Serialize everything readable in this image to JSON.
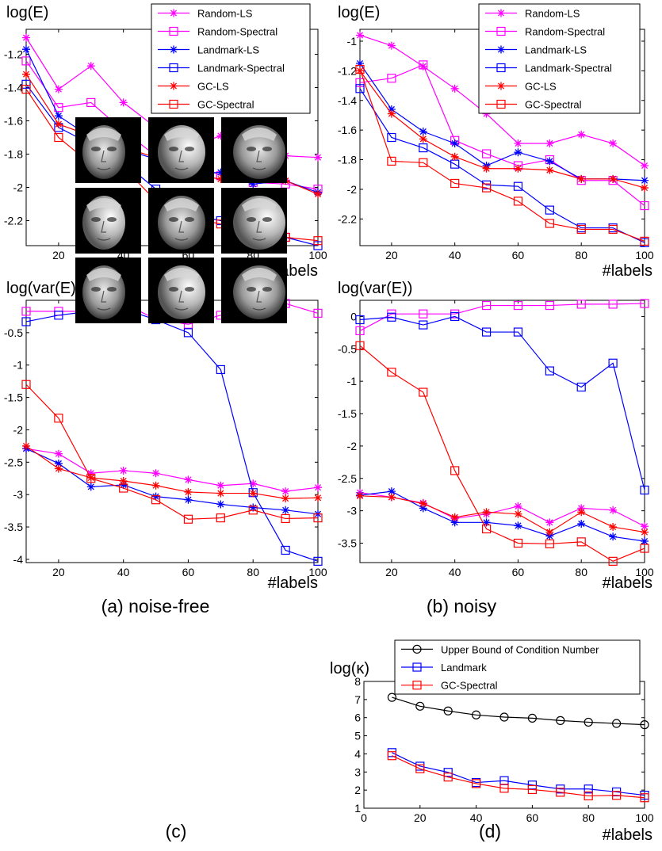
{
  "captions": {
    "a": "(a) noise-free",
    "b": "(b) noisy",
    "c": "(c)",
    "d": "(d)"
  },
  "faces_panel": {
    "face_count": 9
  },
  "colors": {
    "magenta": "#ff00ff",
    "blue": "#0000ff",
    "red": "#ff0000",
    "black": "#000000"
  },
  "chart_data": [
    {
      "id": "top-left",
      "type": "line",
      "ylabel": "log(E)",
      "xlabel": "#labels",
      "xlim": [
        10,
        100
      ],
      "ylim": [
        -2.35,
        -1.05
      ],
      "xticks": [
        20,
        40,
        60,
        80,
        100
      ],
      "xtick_labels": [
        "20",
        "40",
        "60",
        "80",
        "100"
      ],
      "yticks": [
        -2.2,
        -2,
        -1.8,
        -1.6,
        -1.4,
        -1.2
      ],
      "ytick_labels": [
        "-2.2",
        "-2",
        "-1.8",
        "-1.6",
        "-1.4",
        "-1.2"
      ],
      "legend": "top-right",
      "x": [
        10,
        20,
        30,
        40,
        50,
        60,
        70,
        80,
        90,
        100
      ],
      "series": [
        {
          "name": "Random-LS",
          "color": "#ff00ff",
          "marker": "star",
          "values": [
            -1.1,
            -1.41,
            -1.27,
            -1.49,
            -1.64,
            -1.76,
            -1.69,
            -1.79,
            -1.81,
            -1.82
          ]
        },
        {
          "name": "Random-Spectral",
          "color": "#ff00ff",
          "marker": "square",
          "values": [
            -1.24,
            -1.52,
            -1.49,
            -1.66,
            -1.81,
            -1.83,
            -1.93,
            -1.97,
            -1.98,
            -2.01
          ]
        },
        {
          "name": "Landmark-LS",
          "color": "#0000ff",
          "marker": "star",
          "values": [
            -1.17,
            -1.57,
            -1.7,
            -1.77,
            -1.83,
            -1.92,
            -1.91,
            -1.98,
            -1.96,
            -2.03
          ]
        },
        {
          "name": "Landmark-Spectral",
          "color": "#0000ff",
          "marker": "square",
          "values": [
            -1.38,
            -1.64,
            -1.74,
            -1.85,
            -2.01,
            -2.16,
            -2.2,
            -2.25,
            -2.3,
            -2.35
          ]
        },
        {
          "name": "GC-LS",
          "color": "#ff0000",
          "marker": "star",
          "values": [
            -1.32,
            -1.62,
            -1.69,
            -1.76,
            -1.82,
            -1.92,
            -1.95,
            -1.95,
            -1.96,
            -2.04
          ]
        },
        {
          "name": "GC-Spectral",
          "color": "#ff0000",
          "marker": "square",
          "values": [
            -1.41,
            -1.7,
            -1.86,
            -1.88,
            -2.08,
            -2.18,
            -2.22,
            -2.29,
            -2.3,
            -2.32
          ]
        }
      ]
    },
    {
      "id": "top-right",
      "type": "line",
      "ylabel": "log(E)",
      "xlabel": "#labels",
      "xlim": [
        10,
        100
      ],
      "ylim": [
        -2.38,
        -0.92
      ],
      "xticks": [
        20,
        40,
        60,
        80,
        100
      ],
      "xtick_labels": [
        "20",
        "40",
        "60",
        "80",
        "100"
      ],
      "yticks": [
        -2.2,
        -2,
        -1.8,
        -1.6,
        -1.4,
        -1.2,
        -1
      ],
      "ytick_labels": [
        "-2.2",
        "-2",
        "-1.8",
        "-1.6",
        "-1.4",
        "-1.2",
        "-1"
      ],
      "legend": "top-right",
      "x": [
        10,
        20,
        30,
        40,
        50,
        60,
        70,
        80,
        90,
        100
      ],
      "series": [
        {
          "name": "Random-LS",
          "color": "#ff00ff",
          "marker": "star",
          "values": [
            -0.96,
            -1.03,
            -1.17,
            -1.32,
            -1.49,
            -1.69,
            -1.69,
            -1.63,
            -1.69,
            -1.84
          ]
        },
        {
          "name": "Random-Spectral",
          "color": "#ff00ff",
          "marker": "square",
          "values": [
            -1.28,
            -1.25,
            -1.16,
            -1.67,
            -1.76,
            -1.84,
            -1.8,
            -1.94,
            -1.94,
            -2.11
          ]
        },
        {
          "name": "Landmark-LS",
          "color": "#0000ff",
          "marker": "star",
          "values": [
            -1.15,
            -1.46,
            -1.61,
            -1.69,
            -1.84,
            -1.75,
            -1.81,
            -1.93,
            -1.93,
            -1.94
          ]
        },
        {
          "name": "Landmark-Spectral",
          "color": "#0000ff",
          "marker": "square",
          "values": [
            -1.32,
            -1.65,
            -1.72,
            -1.83,
            -1.97,
            -1.98,
            -2.14,
            -2.26,
            -2.26,
            -2.36
          ]
        },
        {
          "name": "GC-LS",
          "color": "#ff0000",
          "marker": "star",
          "values": [
            -1.2,
            -1.49,
            -1.66,
            -1.78,
            -1.86,
            -1.86,
            -1.87,
            -1.93,
            -1.93,
            -1.99
          ]
        },
        {
          "name": "GC-Spectral",
          "color": "#ff0000",
          "marker": "square",
          "values": [
            -1.19,
            -1.81,
            -1.82,
            -1.96,
            -1.99,
            -2.08,
            -2.23,
            -2.27,
            -2.27,
            -2.35
          ]
        }
      ]
    },
    {
      "id": "mid-left",
      "type": "line",
      "ylabel": "log(var(E))",
      "xlabel": "#labels",
      "xlim": [
        10,
        100
      ],
      "ylim": [
        -4.05,
        0.0
      ],
      "xticks": [
        20,
        40,
        60,
        80,
        100
      ],
      "xtick_labels": [
        "20",
        "40",
        "60",
        "80",
        "100"
      ],
      "yticks": [
        -4,
        -3.5,
        -3,
        -2.5,
        -2,
        -1.5,
        -1,
        -0.5
      ],
      "ytick_labels": [
        "-4",
        "-3.5",
        "-3",
        "-2.5",
        "-2",
        "-1.5",
        "-1",
        "-0.5"
      ],
      "x": [
        10,
        20,
        30,
        40,
        50,
        60,
        70,
        80,
        90,
        100
      ],
      "series": [
        {
          "name": "Random-LS",
          "color": "#ff00ff",
          "marker": "star",
          "values": [
            -2.29,
            -2.37,
            -2.67,
            -2.63,
            -2.67,
            -2.77,
            -2.86,
            -2.83,
            -2.95,
            -2.89
          ]
        },
        {
          "name": "Random-Spectral",
          "color": "#ff00ff",
          "marker": "square",
          "values": [
            -0.17,
            -0.17,
            -0.17,
            -0.05,
            -0.29,
            -0.37,
            -0.23,
            -0.27,
            -0.05,
            -0.2
          ]
        },
        {
          "name": "Landmark-LS",
          "color": "#0000ff",
          "marker": "star",
          "values": [
            -2.29,
            -2.52,
            -2.88,
            -2.85,
            -3.03,
            -3.08,
            -3.15,
            -3.2,
            -3.24,
            -3.3
          ]
        },
        {
          "name": "Landmark-Spectral",
          "color": "#0000ff",
          "marker": "square",
          "values": [
            -0.33,
            -0.23,
            -0.17,
            -0.13,
            -0.3,
            -0.5,
            -1.07,
            -2.97,
            -3.86,
            -4.03
          ]
        },
        {
          "name": "GC-LS",
          "color": "#ff0000",
          "marker": "star",
          "values": [
            -2.25,
            -2.6,
            -2.74,
            -2.79,
            -2.86,
            -2.96,
            -2.98,
            -2.98,
            -3.06,
            -3.05
          ]
        },
        {
          "name": "GC-Spectral",
          "color": "#ff0000",
          "marker": "square",
          "values": [
            -1.3,
            -1.82,
            -2.75,
            -2.9,
            -3.08,
            -3.38,
            -3.36,
            -3.24,
            -3.37,
            -3.36
          ]
        }
      ]
    },
    {
      "id": "mid-right",
      "type": "line",
      "ylabel": "log(var(E))",
      "xlabel": "#labels",
      "xlim": [
        10,
        100
      ],
      "ylim": [
        -3.8,
        0.25
      ],
      "xticks": [
        20,
        40,
        60,
        80,
        100
      ],
      "xtick_labels": [
        "20",
        "40",
        "60",
        "80",
        "100"
      ],
      "yticks": [
        -3.5,
        -3,
        -2.5,
        -2,
        -1.5,
        -1,
        -0.5,
        0
      ],
      "ytick_labels": [
        "-3.5",
        "-3",
        "-2.5",
        "-2",
        "-1.5",
        "-1",
        "-0.5",
        "0"
      ],
      "x": [
        10,
        20,
        30,
        40,
        50,
        60,
        70,
        80,
        90,
        100
      ],
      "series": [
        {
          "name": "Random-LS",
          "color": "#ff00ff",
          "marker": "star",
          "values": [
            -2.72,
            -2.79,
            -2.88,
            -3.12,
            -3.05,
            -2.93,
            -3.18,
            -2.96,
            -2.99,
            -3.24
          ]
        },
        {
          "name": "Random-Spectral",
          "color": "#ff00ff",
          "marker": "square",
          "values": [
            -0.22,
            0.04,
            0.04,
            0.04,
            0.17,
            0.17,
            0.17,
            0.19,
            0.19,
            0.2
          ]
        },
        {
          "name": "Landmark-LS",
          "color": "#0000ff",
          "marker": "star",
          "values": [
            -2.76,
            -2.7,
            -2.96,
            -3.18,
            -3.18,
            -3.23,
            -3.39,
            -3.2,
            -3.4,
            -3.47
          ]
        },
        {
          "name": "Landmark-Spectral",
          "color": "#0000ff",
          "marker": "square",
          "values": [
            -0.05,
            -0.01,
            -0.13,
            0.0,
            -0.24,
            -0.24,
            -0.84,
            -1.09,
            -0.72,
            -2.68
          ]
        },
        {
          "name": "GC-LS",
          "color": "#ff0000",
          "marker": "star",
          "values": [
            -2.77,
            -2.79,
            -2.89,
            -3.1,
            -3.02,
            -3.05,
            -3.33,
            -3.02,
            -3.25,
            -3.33
          ]
        },
        {
          "name": "GC-Spectral",
          "color": "#ff0000",
          "marker": "square",
          "values": [
            -0.45,
            -0.86,
            -1.17,
            -2.38,
            -3.28,
            -3.5,
            -3.51,
            -3.48,
            -3.78,
            -3.58
          ]
        }
      ]
    },
    {
      "id": "bottom-right",
      "type": "line",
      "ylabel": "log(κ)",
      "xlabel": "#labels",
      "xlim": [
        0,
        100
      ],
      "ylim": [
        1,
        8
      ],
      "xticks": [
        0,
        20,
        40,
        60,
        80,
        100
      ],
      "xtick_labels": [
        "0",
        "20",
        "40",
        "60",
        "80",
        "100"
      ],
      "yticks": [
        1,
        2,
        3,
        4,
        5,
        6,
        7,
        8
      ],
      "ytick_labels": [
        "1",
        "2",
        "3",
        "4",
        "5",
        "6",
        "7",
        "8"
      ],
      "legend": "top-right",
      "x": [
        10,
        20,
        30,
        40,
        50,
        60,
        70,
        80,
        90,
        100
      ],
      "series": [
        {
          "name": "Upper Bound of Condition Number",
          "color": "#000000",
          "marker": "circle",
          "values": [
            7.12,
            6.63,
            6.37,
            6.15,
            6.03,
            5.97,
            5.84,
            5.75,
            5.68,
            5.61
          ]
        },
        {
          "name": "Landmark",
          "color": "#0000ff",
          "marker": "square",
          "values": [
            4.07,
            3.32,
            2.98,
            2.42,
            2.52,
            2.28,
            2.06,
            2.06,
            1.9,
            1.72
          ]
        },
        {
          "name": "GC-Spectral",
          "color": "#ff0000",
          "marker": "square",
          "values": [
            3.9,
            3.18,
            2.72,
            2.36,
            2.1,
            2.03,
            1.88,
            1.68,
            1.71,
            1.58
          ]
        }
      ]
    }
  ]
}
